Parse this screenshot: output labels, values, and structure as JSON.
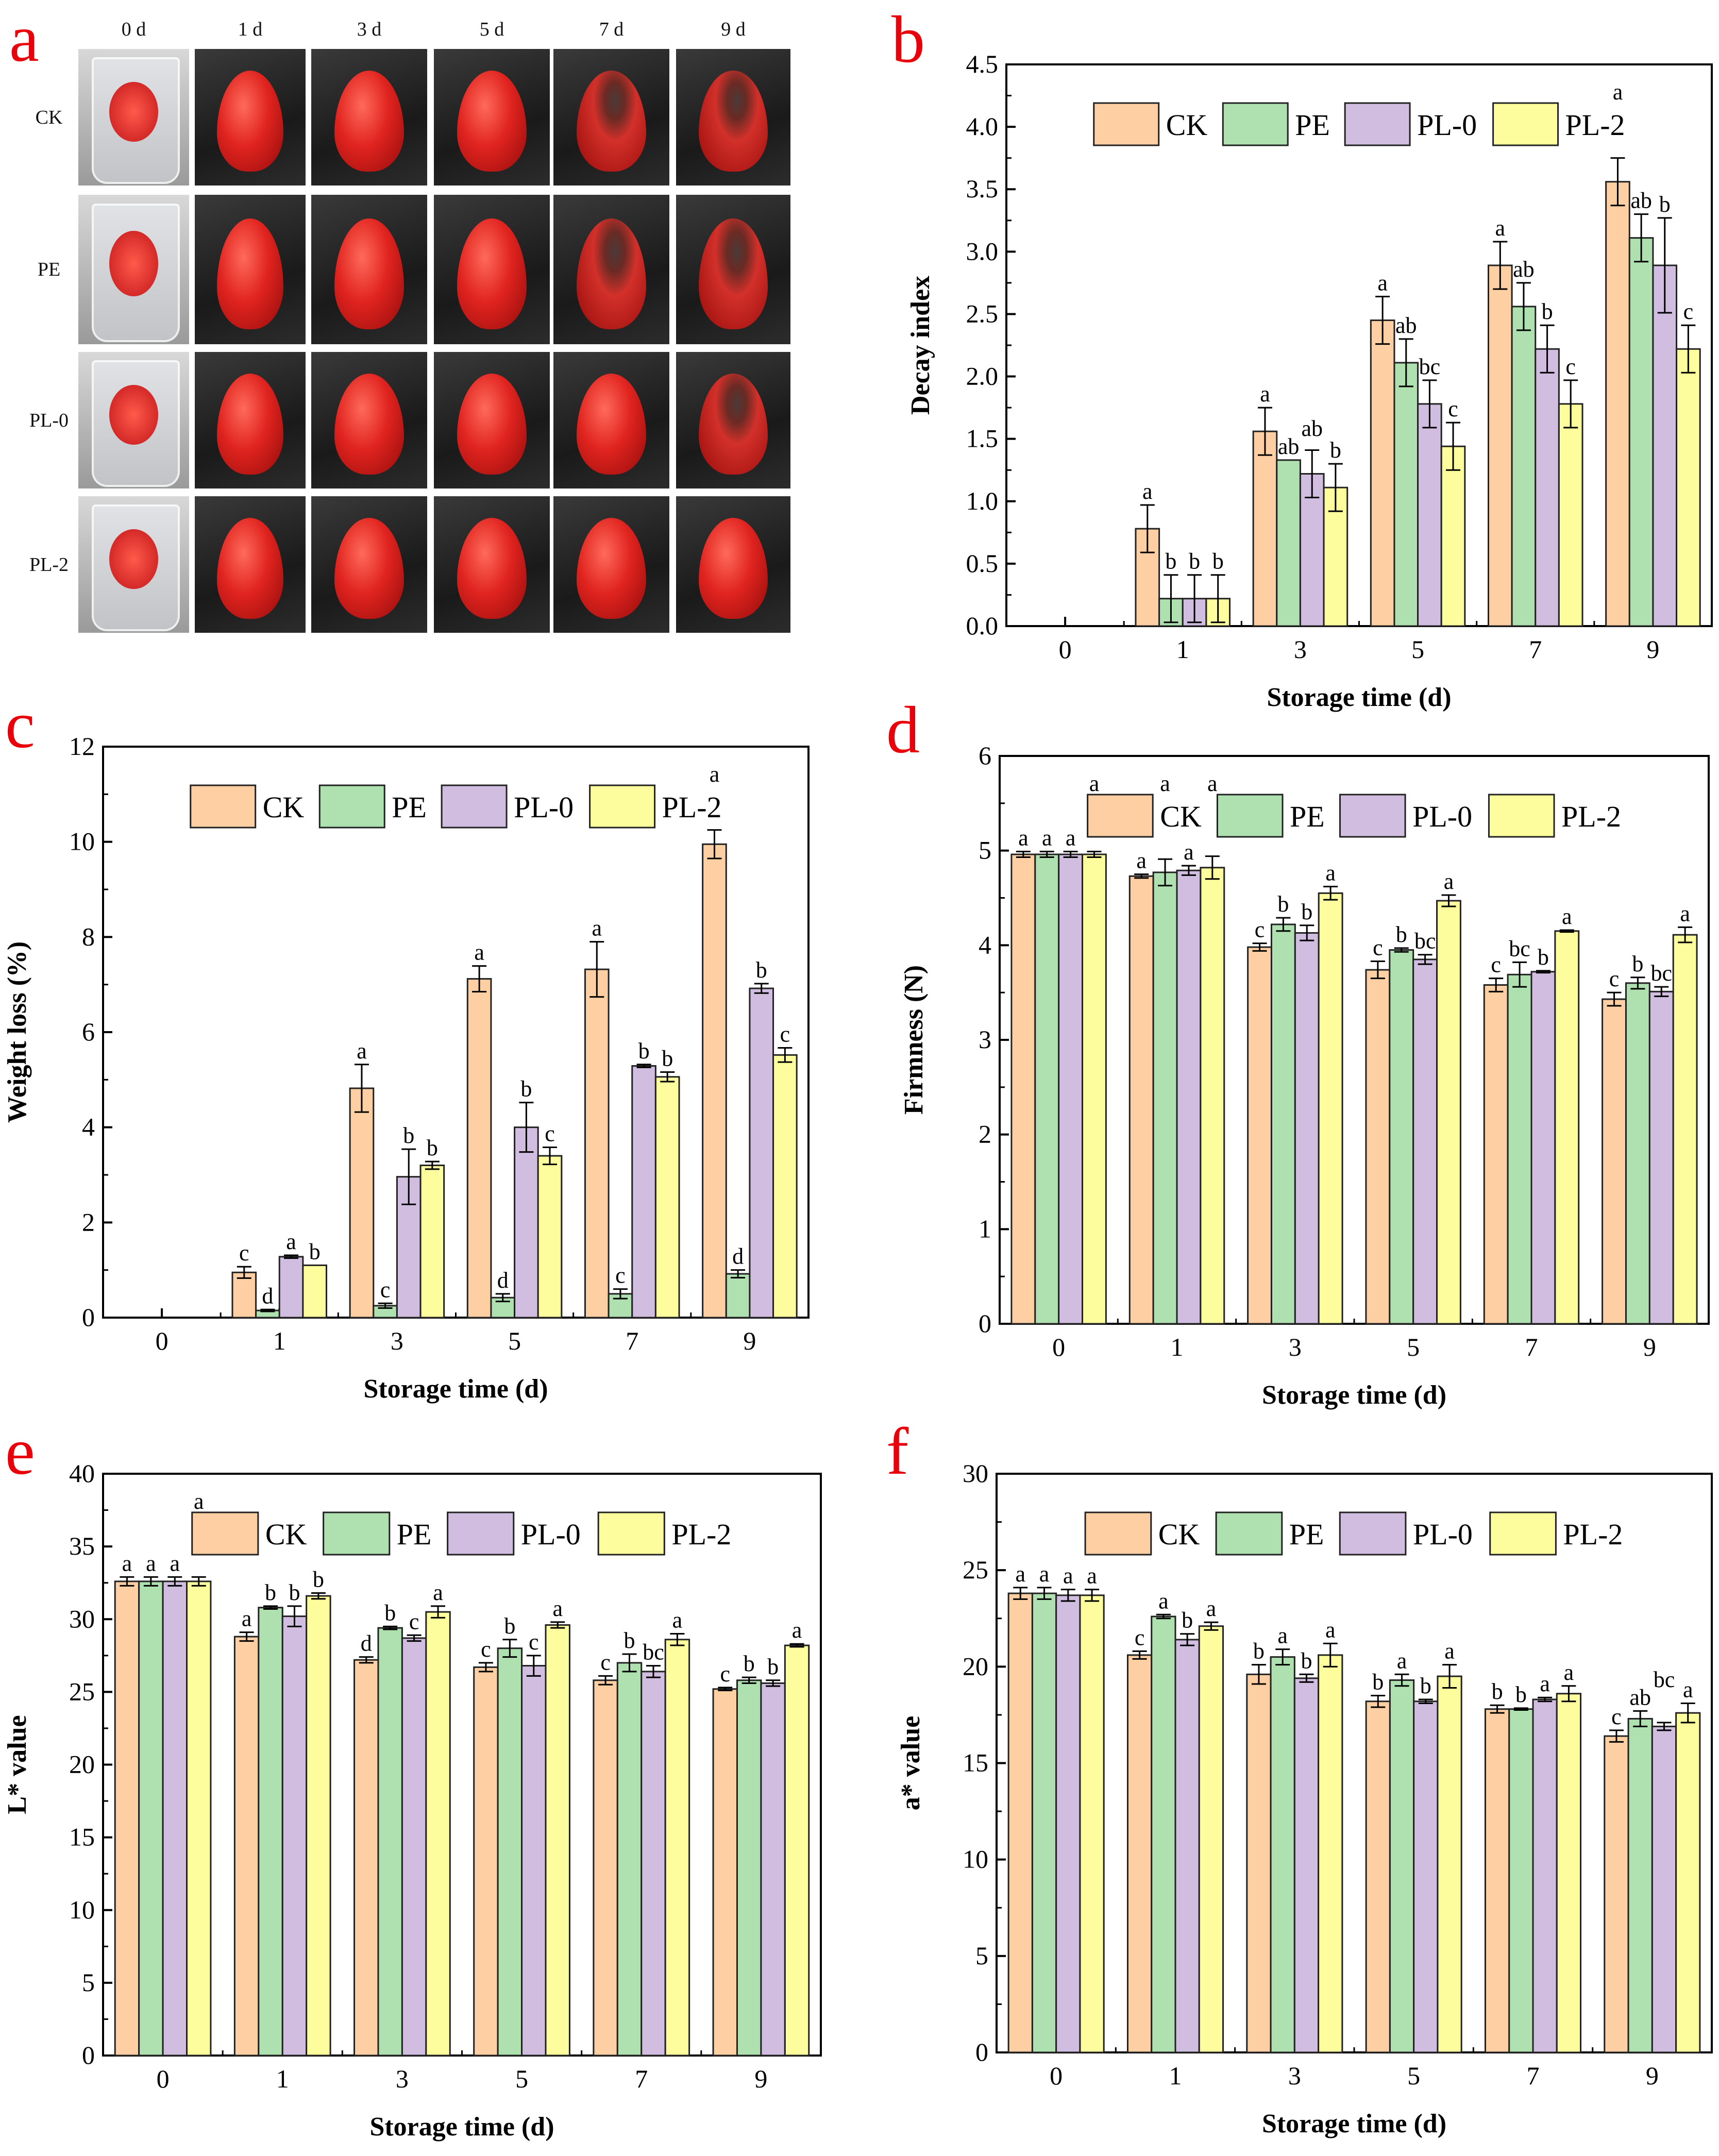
{
  "panel_a": {
    "label": "a",
    "columns": [
      "0 d",
      "1 d",
      "3 d",
      "5 d",
      "7 d",
      "9 d"
    ],
    "rows": [
      "CK",
      "PE",
      "PL-0",
      "PL-2"
    ]
  },
  "legend": [
    {
      "name": "CK",
      "color": "#fdcfa2"
    },
    {
      "name": "PE",
      "color": "#aee0b0"
    },
    {
      "name": "PL-0",
      "color": "#d1bde0"
    },
    {
      "name": "PL-2",
      "color": "#fdfd9e"
    }
  ],
  "chart_data": [
    {
      "panel": "b",
      "type": "bar",
      "title": "",
      "xlabel": "Storage time (d)",
      "ylabel": "Decay index",
      "ylim": [
        0,
        4.5
      ],
      "yticks": [
        "0.0",
        "0.5",
        "1.0",
        "1.5",
        "2.0",
        "2.5",
        "3.0",
        "3.5",
        "4.0",
        "4.5"
      ],
      "categories": [
        "0",
        "1",
        "3",
        "5",
        "7",
        "9"
      ],
      "legend_position": "top",
      "series": [
        {
          "name": "CK",
          "values": [
            0,
            0.78,
            1.56,
            2.45,
            2.89,
            3.56
          ],
          "errors": [
            0,
            0.19,
            0.19,
            0.19,
            0.19,
            0.19
          ],
          "letters": [
            "",
            "a",
            "a",
            "a",
            "a",
            "a"
          ]
        },
        {
          "name": "PE",
          "values": [
            0,
            0.22,
            1.33,
            2.11,
            2.56,
            3.11
          ],
          "errors": [
            0,
            0.19,
            0,
            0.19,
            0.19,
            0.19
          ],
          "letters": [
            "",
            "b",
            "ab",
            "ab",
            "ab",
            "ab"
          ]
        },
        {
          "name": "PL-0",
          "values": [
            0,
            0.22,
            1.22,
            1.78,
            2.22,
            2.89
          ],
          "errors": [
            0,
            0.19,
            0.19,
            0.19,
            0.19,
            0.38
          ],
          "letters": [
            "",
            "b",
            "ab",
            "bc",
            "b",
            "b"
          ]
        },
        {
          "name": "PL-2",
          "values": [
            0,
            0.22,
            1.11,
            1.44,
            1.78,
            2.22
          ],
          "errors": [
            0,
            0.19,
            0.19,
            0.19,
            0.19,
            0.19
          ],
          "letters": [
            "",
            "b",
            "b",
            "c",
            "c",
            "c"
          ]
        }
      ]
    },
    {
      "panel": "c",
      "type": "bar",
      "title": "",
      "xlabel": "Storage time (d)",
      "ylabel": "Weight loss (%)",
      "ylim": [
        0,
        12
      ],
      "yticks": [
        "0",
        "2",
        "4",
        "6",
        "8",
        "10",
        "12"
      ],
      "categories": [
        "0",
        "1",
        "3",
        "5",
        "7",
        "9"
      ],
      "legend_position": "top",
      "series": [
        {
          "name": "CK",
          "values": [
            0,
            0.95,
            4.82,
            7.12,
            7.32,
            9.95
          ],
          "errors": [
            0,
            0.12,
            0.5,
            0.27,
            0.58,
            0.3
          ],
          "letters": [
            "",
            "c",
            "a",
            "a",
            "a",
            "a"
          ]
        },
        {
          "name": "PE",
          "values": [
            0,
            0.15,
            0.25,
            0.42,
            0.5,
            0.92
          ],
          "errors": [
            0,
            0.02,
            0.05,
            0.08,
            0.1,
            0.08
          ],
          "letters": [
            "",
            "d",
            "c",
            "d",
            "c",
            "d"
          ]
        },
        {
          "name": "PL-0",
          "values": [
            0,
            1.28,
            2.96,
            4.0,
            5.29,
            6.92
          ],
          "errors": [
            0,
            0.03,
            0.58,
            0.52,
            0.03,
            0.1
          ],
          "letters": [
            "",
            "a",
            "b",
            "b",
            "b",
            "b"
          ]
        },
        {
          "name": "PL-2",
          "values": [
            0,
            1.1,
            3.2,
            3.4,
            5.06,
            5.52
          ],
          "errors": [
            0,
            0,
            0.08,
            0.18,
            0.1,
            0.15
          ],
          "letters": [
            "",
            "b",
            "b",
            "c",
            "b",
            "c"
          ]
        }
      ]
    },
    {
      "panel": "d",
      "type": "bar",
      "title": "",
      "xlabel": "Storage time (d)",
      "ylabel": "Firmness (N)",
      "ylim": [
        0,
        6
      ],
      "yticks": [
        "0",
        "1",
        "2",
        "3",
        "4",
        "5",
        "6"
      ],
      "categories": [
        "0",
        "1",
        "3",
        "5",
        "7",
        "9"
      ],
      "legend_position": "top",
      "series": [
        {
          "name": "CK",
          "values": [
            4.96,
            4.73,
            3.98,
            3.74,
            3.58,
            3.43
          ],
          "errors": [
            0.03,
            0.02,
            0.04,
            0.09,
            0.07,
            0.07
          ],
          "letters": [
            "a",
            "a",
            "c",
            "c",
            "c",
            "c"
          ]
        },
        {
          "name": "PE",
          "values": [
            4.96,
            4.77,
            4.22,
            3.95,
            3.69,
            3.6
          ],
          "errors": [
            0.03,
            0.14,
            0.07,
            0.02,
            0.13,
            0.06
          ],
          "letters": [
            "a",
            "a",
            "b",
            "b",
            "bc",
            "b"
          ]
        },
        {
          "name": "PL-0",
          "values": [
            4.96,
            4.79,
            4.13,
            3.85,
            3.72,
            3.51
          ],
          "errors": [
            0.03,
            0.05,
            0.08,
            0.05,
            0.01,
            0.05
          ],
          "letters": [
            "a",
            "a",
            "b",
            "bc",
            "b",
            "bc"
          ]
        },
        {
          "name": "PL-2",
          "values": [
            4.96,
            4.82,
            4.55,
            4.47,
            4.15,
            4.11
          ],
          "errors": [
            0.03,
            0.12,
            0.07,
            0.06,
            0.01,
            0.08
          ],
          "letters": [
            "a",
            "a",
            "a",
            "a",
            "a",
            "a"
          ]
        }
      ]
    },
    {
      "panel": "e",
      "type": "bar",
      "title": "",
      "xlabel": "Storage time (d)",
      "ylabel": "L* value",
      "ylim": [
        0,
        40
      ],
      "yticks": [
        "0",
        "5",
        "10",
        "15",
        "20",
        "25",
        "30",
        "35",
        "40"
      ],
      "categories": [
        "0",
        "1",
        "3",
        "5",
        "7",
        "9"
      ],
      "legend_position": "top",
      "series": [
        {
          "name": "CK",
          "values": [
            32.6,
            28.8,
            27.2,
            26.7,
            25.8,
            25.2
          ],
          "errors": [
            0.3,
            0.3,
            0.2,
            0.3,
            0.3,
            0.1
          ],
          "letters": [
            "a",
            "a",
            "d",
            "c",
            "c",
            "c"
          ]
        },
        {
          "name": "PE",
          "values": [
            32.6,
            30.8,
            29.4,
            28.0,
            27.0,
            25.8
          ],
          "errors": [
            0.3,
            0.1,
            0.1,
            0.6,
            0.6,
            0.2
          ],
          "letters": [
            "a",
            "b",
            "b",
            "b",
            "b",
            "b"
          ]
        },
        {
          "name": "PL-0",
          "values": [
            32.6,
            30.2,
            28.7,
            26.8,
            26.4,
            25.6
          ],
          "errors": [
            0.3,
            0.7,
            0.2,
            0.7,
            0.4,
            0.2
          ],
          "letters": [
            "a",
            "b",
            "c",
            "c",
            "bc",
            "b"
          ]
        },
        {
          "name": "PL-2",
          "values": [
            32.6,
            31.6,
            30.5,
            29.6,
            28.6,
            28.2
          ],
          "errors": [
            0.3,
            0.2,
            0.4,
            0.2,
            0.4,
            0.1
          ],
          "letters": [
            "a",
            "b",
            "a",
            "a",
            "a",
            "a"
          ]
        }
      ]
    },
    {
      "panel": "f",
      "type": "bar",
      "title": "",
      "xlabel": "Storage time (d)",
      "ylabel": "a* value",
      "ylim": [
        0,
        30
      ],
      "yticks": [
        "0",
        "5",
        "10",
        "15",
        "20",
        "25",
        "30"
      ],
      "categories": [
        "0",
        "1",
        "3",
        "5",
        "7",
        "9"
      ],
      "legend_position": "top",
      "series": [
        {
          "name": "CK",
          "values": [
            23.8,
            20.6,
            19.6,
            18.2,
            17.8,
            16.4
          ],
          "errors": [
            0.3,
            0.2,
            0.5,
            0.3,
            0.2,
            0.3
          ],
          "letters": [
            "a",
            "c",
            "b",
            "b",
            "b",
            "c"
          ]
        },
        {
          "name": "PE",
          "values": [
            23.8,
            22.6,
            20.5,
            19.3,
            17.8,
            17.3
          ],
          "errors": [
            0.3,
            0.1,
            0.4,
            0.3,
            0.05,
            0.4
          ],
          "letters": [
            "a",
            "a",
            "a",
            "a",
            "b",
            "ab"
          ]
        },
        {
          "name": "PL-0",
          "values": [
            23.7,
            21.4,
            19.4,
            18.2,
            18.3,
            16.9
          ],
          "errors": [
            0.3,
            0.3,
            0.2,
            0.1,
            0.1,
            0.2
          ],
          "letters": [
            "a",
            "b",
            "b",
            "b",
            "a",
            "bc"
          ]
        },
        {
          "name": "PL-2",
          "values": [
            23.7,
            22.1,
            20.6,
            19.5,
            18.6,
            17.6
          ],
          "errors": [
            0.3,
            0.2,
            0.6,
            0.6,
            0.4,
            0.5
          ],
          "letters": [
            "a",
            "a",
            "a",
            "a",
            "a",
            "a"
          ]
        }
      ]
    }
  ]
}
